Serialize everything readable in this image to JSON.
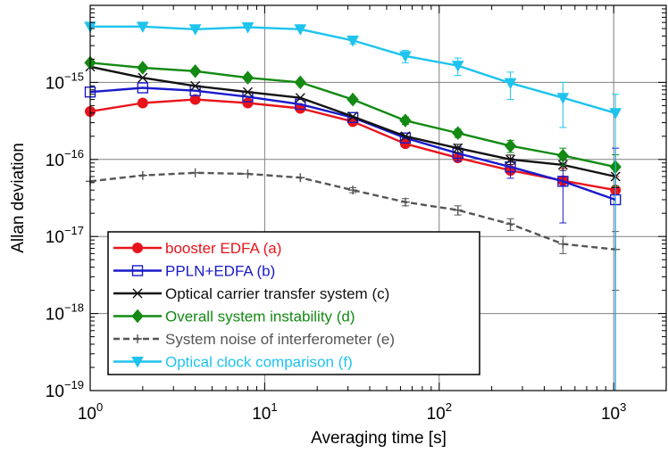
{
  "chart_data": {
    "type": "line",
    "xlabel": "Averaging time [s]",
    "ylabel": "Allan deviation",
    "xscale": "log",
    "yscale": "log",
    "xlim": [
      1,
      2000
    ],
    "ylim": [
      1e-19,
      1e-14
    ],
    "grid": true,
    "legend_position": "bottom-left",
    "x_ticks": [
      {
        "value": 1,
        "mantissa": "10",
        "exp": "0"
      },
      {
        "value": 10,
        "mantissa": "10",
        "exp": "1"
      },
      {
        "value": 100,
        "mantissa": "10",
        "exp": "2"
      },
      {
        "value": 1000,
        "mantissa": "10",
        "exp": "3"
      }
    ],
    "y_ticks": [
      {
        "value": 1e-15,
        "mantissa": "10",
        "exp": "−15"
      },
      {
        "value": 1e-16,
        "mantissa": "10",
        "exp": "−16"
      },
      {
        "value": 1e-17,
        "mantissa": "10",
        "exp": "−17"
      },
      {
        "value": 1e-18,
        "mantissa": "10",
        "exp": "−18"
      },
      {
        "value": 1e-19,
        "mantissa": "10",
        "exp": "−19"
      }
    ],
    "series": [
      {
        "name": "booster EDFA (a)",
        "color": "#e8141b",
        "marker": "filled-circle",
        "dash": "solid",
        "x": [
          1,
          2,
          4,
          8,
          16,
          32,
          64,
          128,
          256,
          512,
          1024
        ],
        "y": [
          4.2e-16,
          5.4e-16,
          6e-16,
          5.4e-16,
          4.6e-16,
          3.1e-16,
          1.6e-16,
          1.05e-16,
          7.2e-17,
          5.3e-17,
          4e-17
        ],
        "err_low": [
          null,
          null,
          null,
          null,
          null,
          null,
          null,
          1.15e-16,
          8.6e-17,
          7.7e-17,
          6e-17
        ],
        "err_high": [
          null,
          null,
          null,
          null,
          null,
          null,
          null,
          1.15e-16,
          8.6e-17,
          7.7e-17,
          6e-17
        ]
      },
      {
        "name": "PPLN+EDFA (b)",
        "color": "#1a1acc",
        "marker": "open-square",
        "dash": "solid",
        "x": [
          1,
          2,
          4,
          8,
          16,
          32,
          64,
          128,
          256,
          512,
          1024
        ],
        "y": [
          7.5e-16,
          8.5e-16,
          7.8e-16,
          6.5e-16,
          5.2e-16,
          3.5e-16,
          1.9e-16,
          1.2e-16,
          8e-17,
          5.2e-17,
          3e-17
        ],
        "err_low": [
          null,
          null,
          null,
          null,
          null,
          null,
          null,
          9.5e-17,
          5.7e-17,
          1.5e-17,
          1e-19
        ],
        "err_high": [
          null,
          null,
          null,
          null,
          null,
          null,
          null,
          1.45e-16,
          1.03e-16,
          8.9e-17,
          1.4e-16
        ]
      },
      {
        "name": "Optical carrier transfer system (c)",
        "color": "#111111",
        "marker": "x",
        "dash": "solid",
        "x": [
          1,
          2,
          4,
          8,
          16,
          32,
          64,
          128,
          256,
          512,
          1024
        ],
        "y": [
          1.6e-15,
          1.15e-15,
          9e-16,
          7.5e-16,
          6.3e-16,
          3.6e-16,
          2e-16,
          1.4e-16,
          1e-16,
          8.5e-17,
          6e-17
        ],
        "err_low": [
          null,
          null,
          null,
          null,
          null,
          null,
          null,
          1.23e-16,
          8.6e-17,
          7.2e-17,
          4.3e-17
        ],
        "err_high": [
          null,
          null,
          null,
          null,
          null,
          null,
          null,
          1.57e-16,
          1.14e-16,
          9.8e-17,
          7.7e-17
        ]
      },
      {
        "name": "Overall system instability (d)",
        "color": "#138a13",
        "marker": "filled-diamond",
        "dash": "solid",
        "x": [
          1,
          2,
          4,
          8,
          16,
          32,
          64,
          128,
          256,
          512,
          1024
        ],
        "y": [
          1.8e-15,
          1.55e-15,
          1.4e-15,
          1.15e-15,
          1e-15,
          6e-16,
          3.2e-16,
          2.2e-16,
          1.5e-16,
          1.12e-16,
          8e-17
        ],
        "err_low": [
          null,
          null,
          null,
          null,
          null,
          null,
          2.85e-16,
          1.93e-16,
          1.23e-16,
          8.4e-17,
          4.5e-17
        ],
        "err_high": [
          null,
          null,
          null,
          null,
          null,
          null,
          3.55e-16,
          2.47e-16,
          1.77e-16,
          1.4e-16,
          1.15e-16
        ]
      },
      {
        "name": "System noise of interferometer (e)",
        "color": "#555555",
        "marker": "plus",
        "dash": "dashed",
        "x": [
          1,
          2,
          4,
          8,
          16,
          32,
          64,
          128,
          256,
          512,
          1024
        ],
        "y": [
          5.2e-17,
          6.2e-17,
          6.7e-17,
          6.5e-17,
          5.8e-17,
          4e-17,
          2.8e-17,
          2.2e-17,
          1.45e-17,
          8e-18,
          6.8e-18
        ],
        "err_low": [
          null,
          null,
          null,
          null,
          null,
          3.7e-17,
          2.5e-17,
          1.9e-17,
          1.2e-17,
          6e-18,
          2e-18
        ],
        "err_high": [
          null,
          null,
          null,
          null,
          null,
          4.3e-17,
          3.1e-17,
          2.5e-17,
          1.7e-17,
          1e-17,
          1.16e-17
        ]
      },
      {
        "name": "Optical clock comparison (f)",
        "color": "#1ec3ee",
        "marker": "filled-triangle-down",
        "dash": "solid",
        "x": [
          1,
          2,
          4,
          8,
          16,
          32,
          64,
          128,
          256,
          512,
          1024
        ],
        "y": [
          5.3e-15,
          5.3e-15,
          4.9e-15,
          5.2e-15,
          4.9e-15,
          3.5e-15,
          2.2e-15,
          1.65e-15,
          9.8e-16,
          6.3e-16,
          4e-16
        ],
        "err_low": [
          null,
          null,
          null,
          null,
          null,
          3.15e-15,
          1.8e-15,
          1.23e-15,
          6e-16,
          2.6e-16,
          1e-19
        ],
        "err_high": [
          null,
          null,
          null,
          null,
          null,
          3.85e-15,
          2.6e-15,
          2.07e-15,
          1.36e-15,
          1e-15,
          7e-16
        ]
      }
    ]
  }
}
